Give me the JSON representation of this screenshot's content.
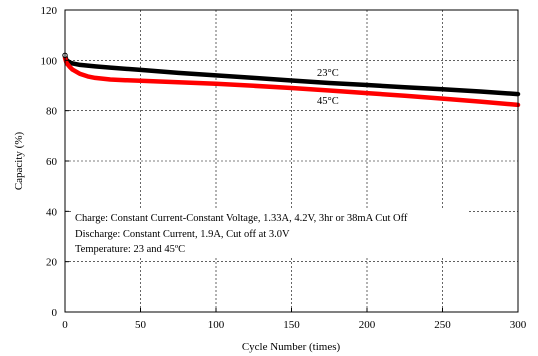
{
  "chart_data": {
    "type": "line",
    "title": "",
    "xlabel": "Cycle Number (times)",
    "ylabel": "Capacity (%)",
    "xlim": [
      0,
      300
    ],
    "ylim": [
      0,
      120
    ],
    "x_ticks": [
      0,
      50,
      100,
      150,
      200,
      250,
      300
    ],
    "y_ticks": [
      0,
      20,
      40,
      60,
      80,
      100,
      120
    ],
    "grid": true,
    "series": [
      {
        "name": "23°C",
        "color": "#000000",
        "x": [
          0,
          1,
          3,
          5,
          10,
          20,
          30,
          50,
          75,
          100,
          125,
          150,
          175,
          200,
          225,
          250,
          275,
          300
        ],
        "y": [
          102,
          100,
          99.2,
          98.8,
          98.2,
          97.6,
          97.1,
          96.2,
          95.0,
          94.0,
          93.0,
          92.0,
          91.0,
          90.2,
          89.3,
          88.5,
          87.6,
          86.6
        ]
      },
      {
        "name": "45°C",
        "color": "#ff0000",
        "x": [
          0,
          1,
          3,
          5,
          10,
          15,
          20,
          30,
          40,
          50,
          75,
          100,
          125,
          150,
          175,
          200,
          225,
          250,
          275,
          300
        ],
        "y": [
          101,
          99,
          97.5,
          96.3,
          94.6,
          93.6,
          93.0,
          92.4,
          92.1,
          91.9,
          91.3,
          90.7,
          89.9,
          89.0,
          88.0,
          87.0,
          85.9,
          84.8,
          83.6,
          82.3
        ]
      }
    ],
    "annotations": [
      "Charge: Constant Current-Constant Voltage, 1.33A, 4.2V, 3hr or 38mA Cut Off",
      "Discharge: Constant Current, 1.9A, Cut off at 3.0V",
      "Temperature: 23 and 45ºC"
    ],
    "series_labels": [
      "23°C",
      "45°C"
    ]
  }
}
